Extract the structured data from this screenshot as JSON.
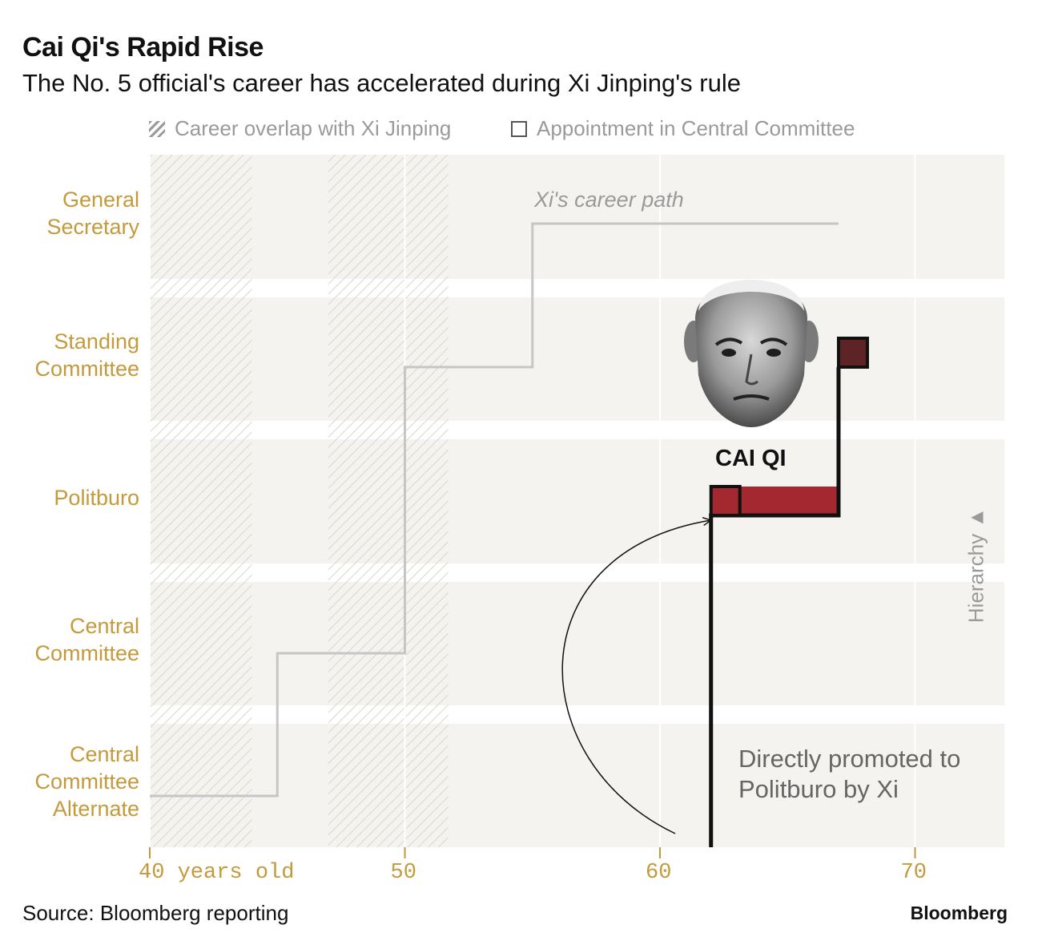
{
  "header": {
    "title": "Cai Qi's Rapid Rise",
    "subtitle": "The No. 5 official's career has accelerated during Xi Jinping's rule"
  },
  "legend": {
    "overlap": "Career overlap with Xi Jinping",
    "appointment": "Appointment in Central Committee"
  },
  "chart_data": {
    "type": "step-line",
    "title": "Cai Qi's Rapid Rise",
    "xlabel": "years old",
    "xlim": [
      40,
      73.5
    ],
    "x_ticks": [
      {
        "value": 40,
        "label": "40 years old"
      },
      {
        "value": 50,
        "label": "50"
      },
      {
        "value": 60,
        "label": "60"
      },
      {
        "value": 70,
        "label": "70"
      }
    ],
    "levels": [
      {
        "level": 4,
        "label": "General\nSecretary"
      },
      {
        "level": 3,
        "label": "Standing\nCommittee"
      },
      {
        "level": 2,
        "label": "Politburo"
      },
      {
        "level": 1,
        "label": "Central\nCommittee"
      },
      {
        "level": 0,
        "label": "Central\nCommittee\nAlternate"
      }
    ],
    "overlap_periods": [
      [
        40,
        44
      ],
      [
        47,
        51.7
      ]
    ],
    "xi_path": {
      "name": "Xi's career path",
      "points": [
        {
          "age": 40,
          "level": 0
        },
        {
          "age": 45,
          "level": 0
        },
        {
          "age": 45,
          "level": 1
        },
        {
          "age": 50,
          "level": 1
        },
        {
          "age": 50,
          "level": 3
        },
        {
          "age": 55,
          "level": 3
        },
        {
          "age": 55,
          "level": 4
        },
        {
          "age": 67,
          "level": 4
        }
      ]
    },
    "cai_qi": {
      "name": "CAI QI",
      "points": [
        {
          "age": 62,
          "level": -0.5
        },
        {
          "age": 62,
          "level": 2
        },
        {
          "age": 67,
          "level": 2
        },
        {
          "age": 67,
          "level": 3
        }
      ],
      "bar": {
        "start": 62,
        "end": 67,
        "level": 2,
        "color": "#a3282f"
      },
      "appointments": [
        {
          "age": 62,
          "level": 2,
          "fill": "#a3282f"
        },
        {
          "age": 67,
          "level": 3,
          "fill": "#5e2425"
        }
      ]
    },
    "annotations": [
      {
        "text": "Directly promoted to Politburo by Xi",
        "from_age": 60.6,
        "to_age": 62,
        "to_level": 2
      }
    ],
    "hierarchy_label": "Hierarchy ▲"
  },
  "footer": {
    "source": "Source: Bloomberg reporting",
    "brand": "Bloomberg"
  },
  "colors": {
    "row_bg": "#f4f3ef",
    "axis_gold": "#c49a3c",
    "xi_line": "#c6c6c6",
    "cai_line": "#111111",
    "politburo_fill": "#a3282f",
    "standing_fill": "#5e2425"
  }
}
